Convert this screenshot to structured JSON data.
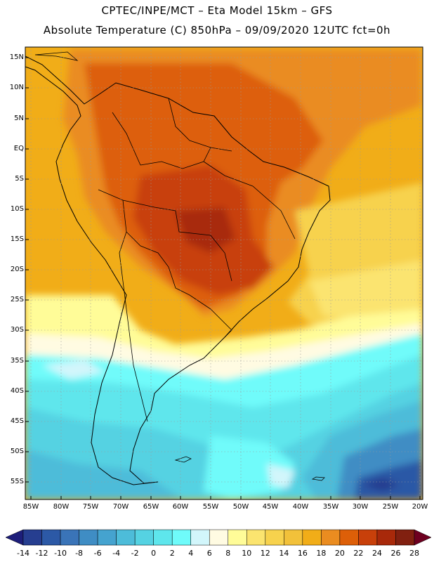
{
  "header": {
    "line1": "CPTEC/INPE/MCT –  Eta Model 15km – GFS",
    "line2": "Absolute Temperature (C) 850hPa – 09/09/2020 12UTC fct=0h"
  },
  "map": {
    "region": "South America",
    "lat_ticks": [
      "15N",
      "10N",
      "5N",
      "EQ",
      "5S",
      "10S",
      "15S",
      "20S",
      "25S",
      "30S",
      "35S",
      "40S",
      "45S",
      "50S",
      "55S"
    ],
    "lon_ticks": [
      "85W",
      "80W",
      "75W",
      "70W",
      "65W",
      "60W",
      "55W",
      "50W",
      "45W",
      "40W",
      "35W",
      "30W",
      "25W",
      "20W"
    ],
    "lat_range_deg": [
      -58,
      16.5
    ],
    "lon_range_deg": [
      -86,
      -19.5
    ]
  },
  "colorbar": {
    "labels": [
      "-14",
      "-12",
      "-10",
      "-8",
      "-6",
      "-4",
      "-2",
      "0",
      "2",
      "4",
      "6",
      "8",
      "10",
      "12",
      "14",
      "16",
      "18",
      "20",
      "22",
      "24",
      "26",
      "28"
    ],
    "colors": [
      "#263e90",
      "#2c59a6",
      "#3a74b8",
      "#3f8dc4",
      "#45a3cf",
      "#4dbcd9",
      "#55d2e2",
      "#5ee6ec",
      "#6ffbfa",
      "#d2f6fb",
      "#fffbe2",
      "#fffc98",
      "#fbe46f",
      "#f7d24d",
      "#f2c13a",
      "#f1ad18",
      "#ea8c20",
      "#dd5f08",
      "#c8400a",
      "#a8290a",
      "#812010"
    ],
    "under_color": "#1d1e7a",
    "over_color": "#6e0020"
  }
}
